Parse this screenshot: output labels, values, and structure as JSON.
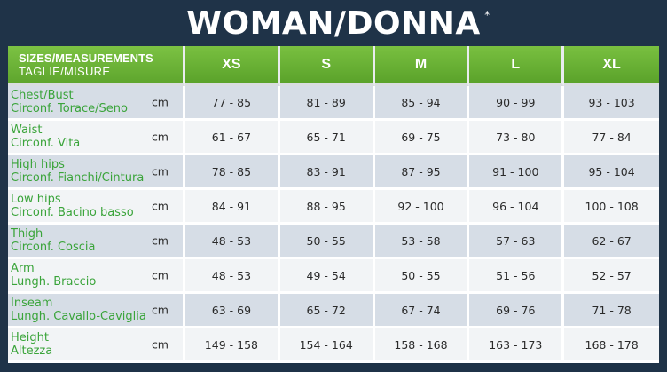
{
  "title": "WOMAN/DONNA",
  "title_mark": "*",
  "header": {
    "label_line1": "SIZES/MEASUREMENTS",
    "label_line2": "TAGLIE/MISURE",
    "sizes": [
      "XS",
      "S",
      "M",
      "L",
      "XL"
    ]
  },
  "colors": {
    "background": "#1f3348",
    "header_green": "#6cb235",
    "label_green": "#3aa43a",
    "row_odd": "#d6dde6",
    "row_even": "#f2f4f6"
  },
  "rows": [
    {
      "en": "Chest/Bust",
      "it": "Circonf. Torace/Seno",
      "unit": "cm",
      "values": [
        "77 - 85",
        "81 - 89",
        "85 - 94",
        "90 - 99",
        "93 - 103"
      ]
    },
    {
      "en": "Waist",
      "it": "Circonf. Vita",
      "unit": "cm",
      "values": [
        "61 - 67",
        "65 - 71",
        "69 - 75",
        "73 - 80",
        "77 - 84"
      ]
    },
    {
      "en": "High hips",
      "it": "Circonf. Fianchi/Cintura",
      "unit": "cm",
      "values": [
        "78 - 85",
        "83 - 91",
        "87 - 95",
        "91 - 100",
        "95 - 104"
      ]
    },
    {
      "en": "Low hips",
      "it": "Circonf. Bacino basso",
      "unit": "cm",
      "values": [
        "84 - 91",
        "88 - 95",
        "92 - 100",
        "96 - 104",
        "100 - 108"
      ]
    },
    {
      "en": "Thigh",
      "it": "Circonf. Coscia",
      "unit": "cm",
      "values": [
        "48 - 53",
        "50 - 55",
        "53 - 58",
        "57 - 63",
        "62 - 67"
      ]
    },
    {
      "en": "Arm",
      "it": "Lungh. Braccio",
      "unit": "cm",
      "values": [
        "48 - 53",
        "49 - 54",
        "50 - 55",
        "51 - 56",
        "52 - 57"
      ]
    },
    {
      "en": "Inseam",
      "it": "Lungh. Cavallo-Caviglia",
      "unit": "cm",
      "values": [
        "63 - 69",
        "65 - 72",
        "67 - 74",
        "69 - 76",
        "71 - 78"
      ]
    },
    {
      "en": "Height",
      "it": "Altezza",
      "unit": "cm",
      "values": [
        "149 - 158",
        "154 - 164",
        "158 - 168",
        "163 - 173",
        "168 - 178"
      ]
    }
  ]
}
